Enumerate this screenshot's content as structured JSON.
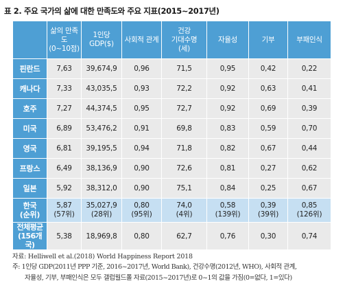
{
  "title": "표 2. 주요 국가의 삶에 대한 만족도와 주요 지표(2015~2017년)",
  "table": {
    "headers": [
      [
        "삶의 만족도",
        "(0~10점)"
      ],
      [
        "1인당",
        "GDP($)"
      ],
      [
        "사회적 관계"
      ],
      [
        "건강",
        "기대수명",
        "(세)"
      ],
      [
        "자율성"
      ],
      [
        "기부"
      ],
      [
        "부패인식"
      ]
    ],
    "rows": [
      {
        "country": "핀란드",
        "cells": [
          "7,63",
          "39,674,9",
          "0,96",
          "71,5",
          "0,95",
          "0,42",
          "0,22"
        ]
      },
      {
        "country": "캐나다",
        "cells": [
          "7,33",
          "43,035,5",
          "0,93",
          "72,2",
          "0,92",
          "0,63",
          "0,41"
        ]
      },
      {
        "country": "호주",
        "cells": [
          "7,27",
          "44,374,5",
          "0,95",
          "72,7",
          "0,92",
          "0,69",
          "0,39"
        ]
      },
      {
        "country": "미국",
        "cells": [
          "6,89",
          "53,476,2",
          "0,91",
          "69,8",
          "0,83",
          "0,59",
          "0,70"
        ]
      },
      {
        "country": "영국",
        "cells": [
          "6,81",
          "39,195,5",
          "0,94",
          "71,8",
          "0,82",
          "0,67",
          "0,44"
        ]
      },
      {
        "country": "프랑스",
        "cells": [
          "6,49",
          "38,136,9",
          "0,90",
          "72,6",
          "0,81",
          "0,27",
          "0,62"
        ]
      },
      {
        "country": "일본",
        "cells": [
          "5,92",
          "38,312,0",
          "0,90",
          "75,1",
          "0,84",
          "0,25",
          "0,67"
        ]
      }
    ],
    "korea": {
      "country": [
        "한국",
        "(순위)"
      ],
      "cells": [
        [
          "5,87",
          "(57위)"
        ],
        [
          "35,027,9",
          "(28위)"
        ],
        [
          "0,80",
          "(95위)"
        ],
        [
          "74,0",
          "(4위)"
        ],
        [
          "0,58",
          "(139위)"
        ],
        [
          "0,39",
          "(39위)"
        ],
        [
          "0,85",
          "(126위)"
        ]
      ]
    },
    "average": {
      "country": [
        "전체평균",
        "(156개국)"
      ],
      "cells": [
        "5,38",
        "18,969,8",
        "0,80",
        "62,7",
        "0,76",
        "0,30",
        "0,74"
      ]
    }
  },
  "source": "자료: Helliwell et al.(2018) World Happiness Report 2018",
  "note": {
    "line1": "주: 1인당 GDP(2011년 PPP 기준, 2016~2017년, World Bank), 건강수명(2012년, WHO), 사회적 관계,",
    "line2": "자율성, 기부, 부패인식은 모두 갤럽월드폴 자료(2015~2017년)로 0~1의 값을 가짐(0=없다, 1=있다)"
  }
}
